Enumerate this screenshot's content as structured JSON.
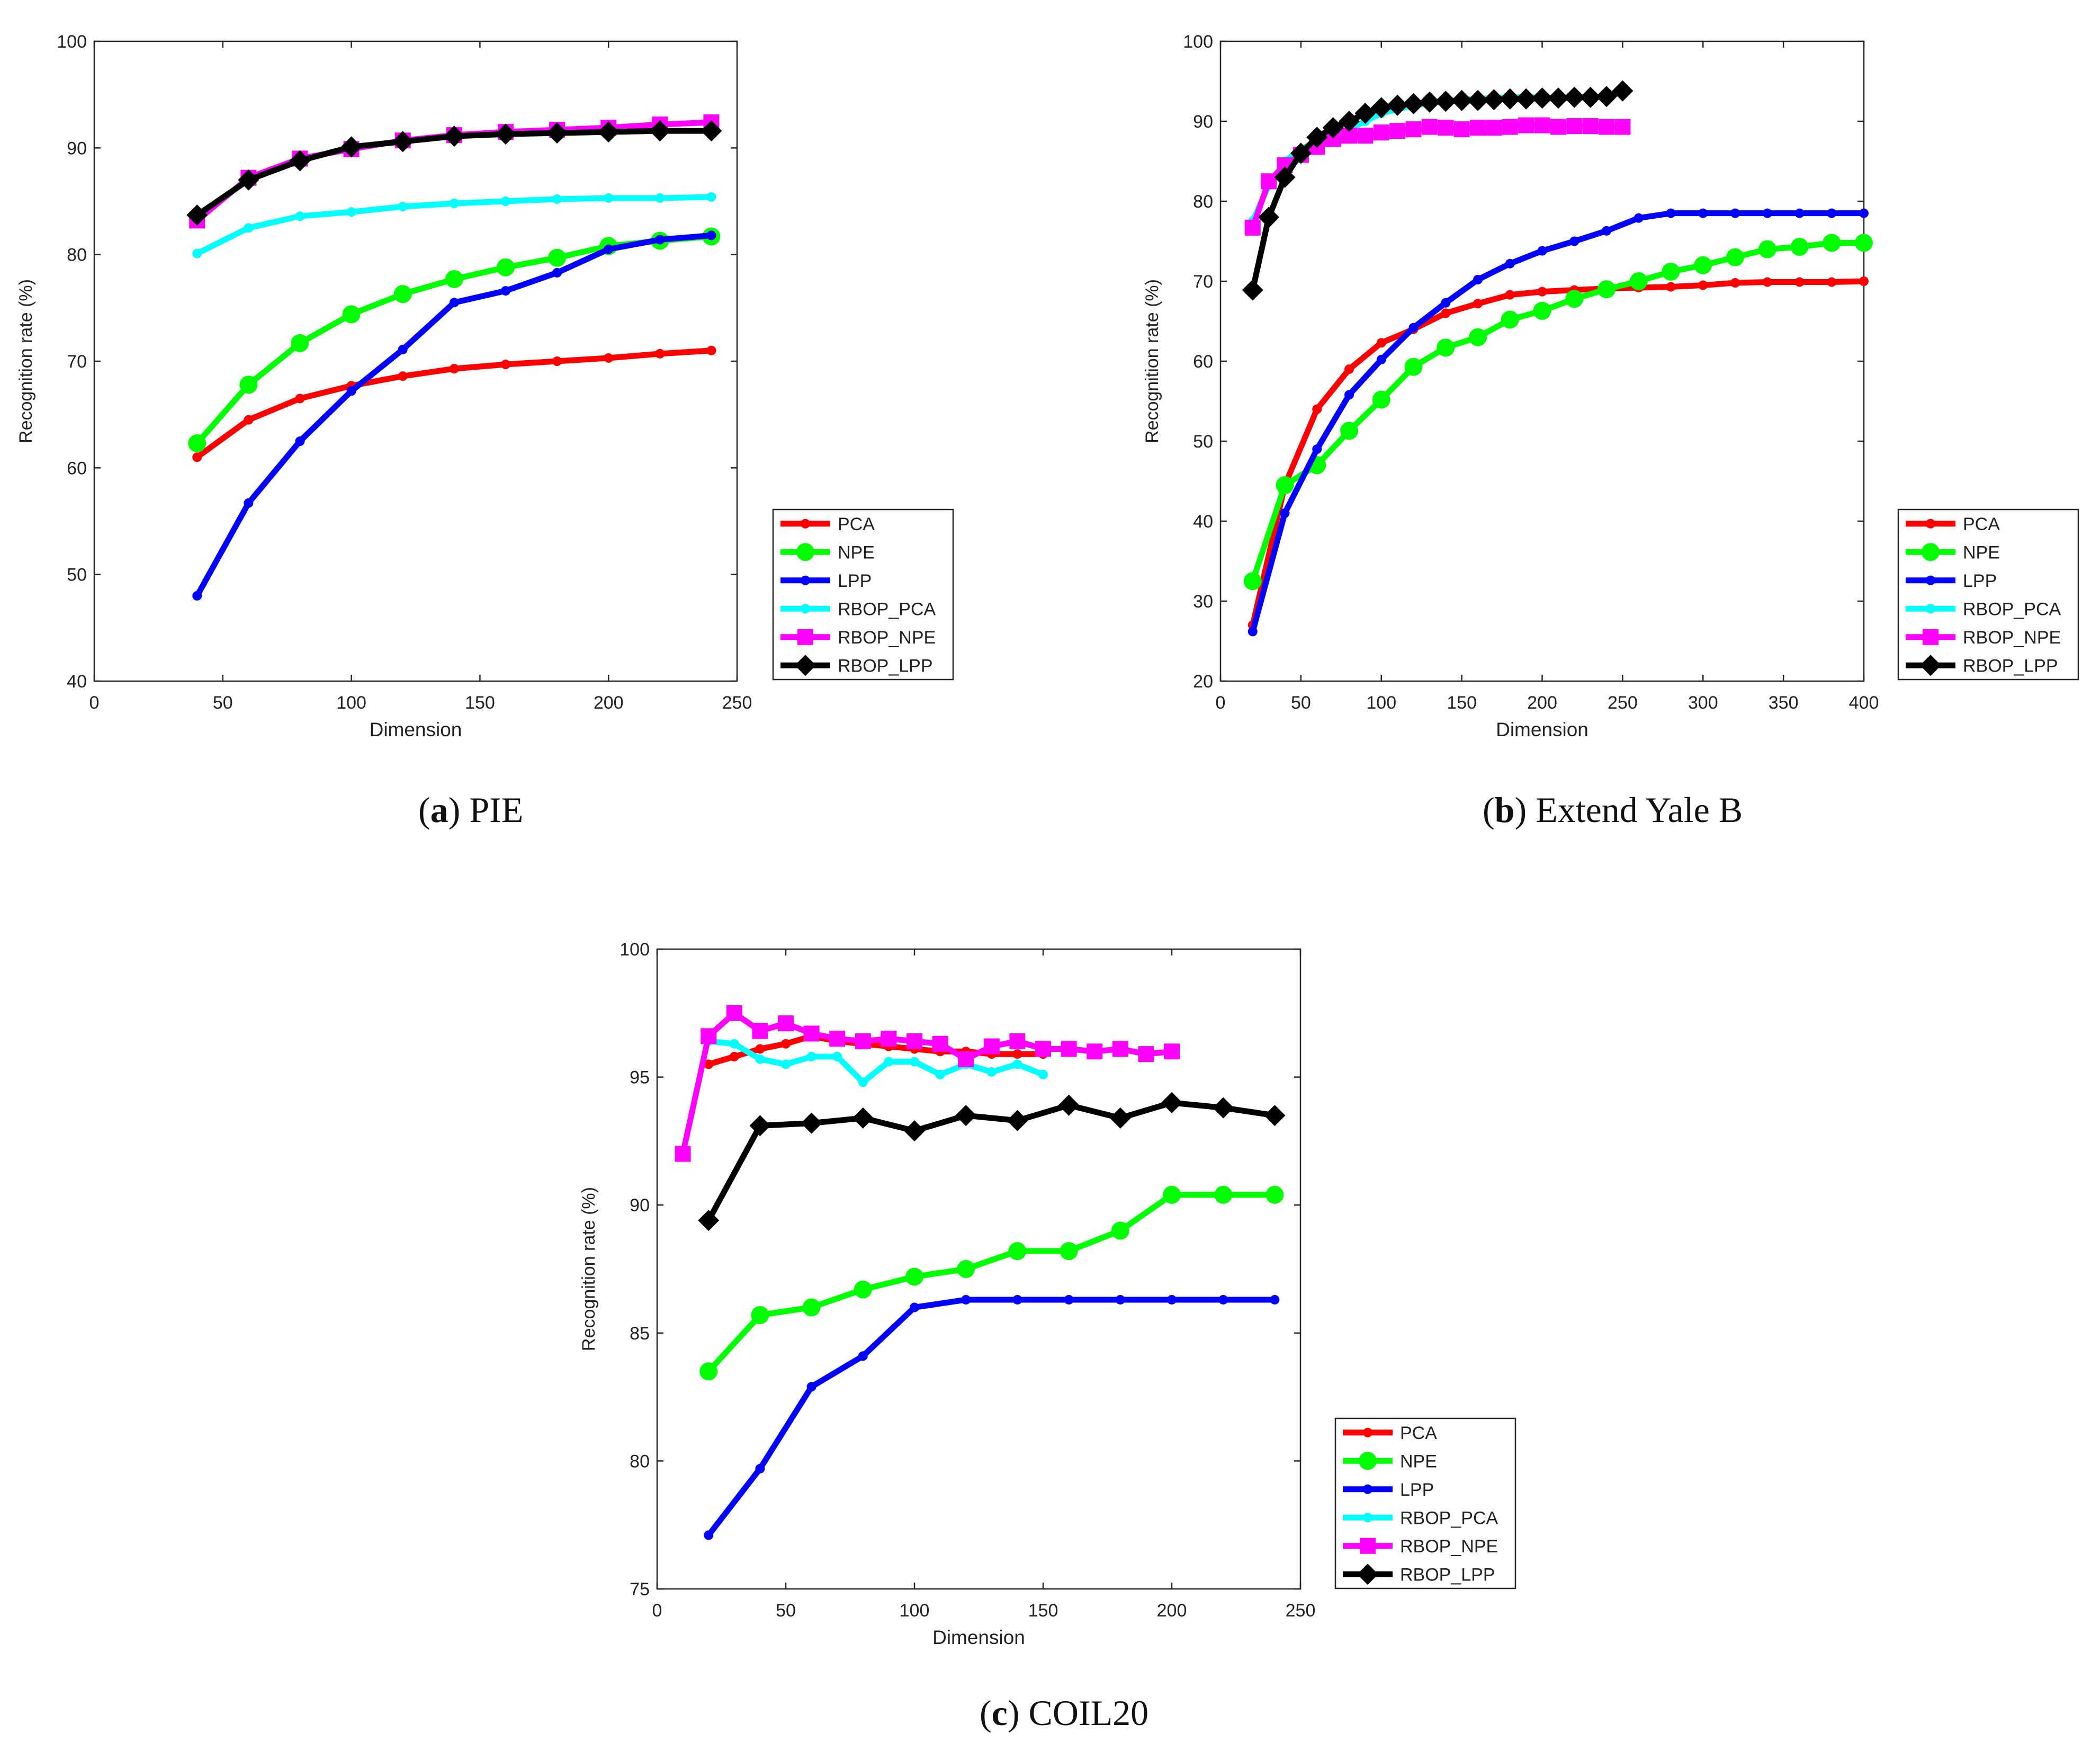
{
  "figure": {
    "captions": [
      {
        "letter": "a",
        "text": "PIE"
      },
      {
        "letter": "b",
        "text": "Extend Yale B"
      },
      {
        "letter": "c",
        "text": "COIL20"
      }
    ]
  },
  "colors": {
    "PCA": "#ff0000",
    "NPE": "#00ff00",
    "LPP": "#0000ff",
    "RBOP_PCA": "#00ffff",
    "RBOP_NPE": "#ff00ff",
    "RBOP_LPP": "#000000"
  },
  "chart_data": [
    {
      "type": "line",
      "title": "",
      "caption": "(a) PIE",
      "xlabel": "Dimension",
      "ylabel": "Recognition rate (%)",
      "xlim": [
        0,
        250
      ],
      "ylim": [
        40,
        100
      ],
      "xticks": [
        0,
        50,
        100,
        150,
        200,
        250
      ],
      "yticks": [
        40,
        50,
        60,
        70,
        80,
        90,
        100
      ],
      "legend_position": "right-middle",
      "series": [
        {
          "name": "PCA",
          "marker": "dot",
          "x": [
            40,
            60,
            80,
            100,
            120,
            140,
            160,
            180,
            200,
            220,
            240
          ],
          "values": [
            61.0,
            64.5,
            66.5,
            67.7,
            68.6,
            69.3,
            69.7,
            70.0,
            70.3,
            70.7,
            71.0
          ]
        },
        {
          "name": "NPE",
          "marker": "circle",
          "x": [
            40,
            60,
            80,
            100,
            120,
            140,
            160,
            180,
            200,
            220,
            240
          ],
          "values": [
            62.3,
            67.8,
            71.7,
            74.4,
            76.3,
            77.7,
            78.8,
            79.7,
            80.8,
            81.3,
            81.7
          ]
        },
        {
          "name": "LPP",
          "marker": "dot",
          "x": [
            40,
            60,
            80,
            100,
            120,
            140,
            160,
            180,
            200,
            220,
            240
          ],
          "values": [
            48.0,
            56.7,
            62.5,
            67.2,
            71.1,
            75.5,
            76.6,
            78.3,
            80.5,
            81.4,
            81.8
          ]
        },
        {
          "name": "RBOP_PCA",
          "marker": "dot",
          "x": [
            40,
            60,
            80,
            100,
            120,
            140,
            160,
            180,
            200,
            220,
            240
          ],
          "values": [
            80.1,
            82.5,
            83.6,
            84.0,
            84.5,
            84.8,
            85.0,
            85.2,
            85.3,
            85.3,
            85.4
          ]
        },
        {
          "name": "RBOP_NPE",
          "marker": "square",
          "x": [
            40,
            60,
            80,
            100,
            120,
            140,
            160,
            180,
            200,
            220,
            240
          ],
          "values": [
            83.2,
            87.2,
            89.0,
            89.9,
            90.7,
            91.2,
            91.5,
            91.7,
            91.9,
            92.2,
            92.4
          ]
        },
        {
          "name": "RBOP_LPP",
          "marker": "diamond",
          "x": [
            40,
            60,
            80,
            100,
            120,
            140,
            160,
            180,
            200,
            220,
            240
          ],
          "values": [
            83.7,
            87.0,
            88.8,
            90.1,
            90.6,
            91.1,
            91.3,
            91.4,
            91.5,
            91.6,
            91.6
          ]
        }
      ]
    },
    {
      "type": "line",
      "title": "",
      "caption": "(b) Extend Yale B",
      "xlabel": "Dimension",
      "ylabel": "Recognition rate (%)",
      "xlim": [
        0,
        400
      ],
      "ylim": [
        20,
        100
      ],
      "xticks": [
        0,
        50,
        100,
        150,
        200,
        250,
        300,
        350,
        400
      ],
      "yticks": [
        20,
        30,
        40,
        50,
        60,
        70,
        80,
        90,
        100
      ],
      "legend_position": "right-middle",
      "series": [
        {
          "name": "PCA",
          "marker": "dot",
          "x": [
            20,
            40,
            60,
            80,
            100,
            120,
            140,
            160,
            180,
            200,
            220,
            240,
            260,
            280,
            300,
            320,
            340,
            360,
            380,
            400
          ],
          "values": [
            27.0,
            44.5,
            54.0,
            59.0,
            62.3,
            64.0,
            66.0,
            67.2,
            68.3,
            68.7,
            68.9,
            69.1,
            69.2,
            69.3,
            69.5,
            69.8,
            69.9,
            69.9,
            69.9,
            70.0
          ]
        },
        {
          "name": "NPE",
          "marker": "circle",
          "x": [
            20,
            40,
            60,
            80,
            100,
            120,
            140,
            160,
            180,
            200,
            220,
            240,
            260,
            280,
            300,
            320,
            340,
            360,
            380,
            400
          ],
          "values": [
            32.5,
            44.5,
            47.0,
            51.3,
            55.2,
            59.3,
            61.7,
            63.0,
            65.2,
            66.3,
            67.8,
            69.0,
            70.0,
            71.2,
            72.0,
            73.0,
            74.0,
            74.3,
            74.8,
            74.8
          ]
        },
        {
          "name": "LPP",
          "marker": "dot",
          "x": [
            20,
            40,
            60,
            80,
            100,
            120,
            140,
            160,
            180,
            200,
            220,
            240,
            260,
            280,
            300,
            320,
            340,
            360,
            380,
            400
          ],
          "values": [
            26.2,
            41.0,
            49.0,
            55.8,
            60.2,
            64.2,
            67.3,
            70.2,
            72.2,
            73.8,
            75.0,
            76.3,
            77.9,
            78.5,
            78.5,
            78.5,
            78.5,
            78.5,
            78.5,
            78.5
          ]
        },
        {
          "name": "RBOP_PCA",
          "marker": "dot",
          "x": [
            20,
            30,
            40,
            50,
            60,
            70,
            80,
            90,
            100,
            110,
            120,
            130,
            140,
            150,
            160,
            170,
            180,
            190,
            200
          ],
          "values": [
            77.5,
            82.0,
            85.0,
            86.5,
            87.5,
            88.3,
            89.0,
            90.0,
            91.0,
            91.5,
            92.0,
            92.2,
            92.5,
            92.7,
            92.8,
            92.9,
            93.0,
            93.0,
            93.0
          ]
        },
        {
          "name": "RBOP_NPE",
          "marker": "square",
          "x": [
            20,
            30,
            40,
            50,
            60,
            70,
            80,
            90,
            100,
            110,
            120,
            130,
            140,
            150,
            160,
            170,
            180,
            190,
            200,
            210,
            220,
            230,
            240,
            250
          ],
          "values": [
            76.7,
            82.5,
            84.5,
            85.8,
            86.8,
            87.8,
            88.2,
            88.2,
            88.6,
            88.8,
            89.0,
            89.3,
            89.2,
            89.0,
            89.2,
            89.2,
            89.3,
            89.5,
            89.5,
            89.3,
            89.4,
            89.4,
            89.3,
            89.3
          ]
        },
        {
          "name": "RBOP_LPP",
          "marker": "diamond",
          "x": [
            20,
            30,
            40,
            50,
            60,
            70,
            80,
            90,
            100,
            110,
            120,
            130,
            140,
            150,
            160,
            170,
            180,
            190,
            200,
            210,
            220,
            230,
            240,
            250
          ],
          "values": [
            68.9,
            78.0,
            83.0,
            86.0,
            88.0,
            89.2,
            90.0,
            91.0,
            91.7,
            92.0,
            92.2,
            92.4,
            92.5,
            92.6,
            92.6,
            92.7,
            92.8,
            92.8,
            92.9,
            92.9,
            93.0,
            93.0,
            93.1,
            93.8
          ]
        }
      ]
    },
    {
      "type": "line",
      "title": "",
      "caption": "(c) COIL20",
      "xlabel": "Dimension",
      "ylabel": "Recognition rate (%)",
      "xlim": [
        0,
        250
      ],
      "ylim": [
        75,
        100
      ],
      "xticks": [
        0,
        50,
        100,
        150,
        200,
        250
      ],
      "yticks": [
        75,
        80,
        85,
        90,
        95,
        100
      ],
      "legend_position": "right-bottom",
      "series": [
        {
          "name": "PCA",
          "marker": "dot",
          "x": [
            20,
            30,
            40,
            50,
            60,
            70,
            80,
            90,
            100,
            110,
            120,
            130,
            140,
            150
          ],
          "values": [
            95.5,
            95.8,
            96.1,
            96.3,
            96.6,
            96.4,
            96.3,
            96.2,
            96.1,
            96.0,
            96.0,
            95.9,
            95.9,
            95.9
          ]
        },
        {
          "name": "NPE",
          "marker": "circle",
          "x": [
            20,
            40,
            60,
            80,
            100,
            120,
            140,
            160,
            180,
            200,
            220,
            240
          ],
          "values": [
            83.5,
            85.7,
            86.0,
            86.7,
            87.2,
            87.5,
            88.2,
            88.2,
            89.0,
            90.4,
            90.4,
            90.4
          ]
        },
        {
          "name": "LPP",
          "marker": "dot",
          "x": [
            20,
            40,
            60,
            80,
            100,
            120,
            140,
            160,
            180,
            200,
            220,
            240
          ],
          "values": [
            77.1,
            79.7,
            82.9,
            84.1,
            86.0,
            86.3,
            86.3,
            86.3,
            86.3,
            86.3,
            86.3,
            86.3
          ]
        },
        {
          "name": "RBOP_PCA",
          "marker": "dot",
          "x": [
            20,
            30,
            40,
            50,
            60,
            70,
            80,
            90,
            100,
            110,
            120,
            130,
            140,
            150
          ],
          "values": [
            96.4,
            96.3,
            95.7,
            95.5,
            95.8,
            95.8,
            94.8,
            95.6,
            95.6,
            95.1,
            95.5,
            95.2,
            95.5,
            95.1
          ]
        },
        {
          "name": "RBOP_NPE",
          "marker": "square",
          "x": [
            10,
            20,
            30,
            40,
            50,
            60,
            70,
            80,
            90,
            100,
            110,
            120,
            130,
            140,
            150,
            160,
            170,
            180,
            190,
            200
          ],
          "values": [
            92.0,
            96.6,
            97.5,
            96.8,
            97.1,
            96.7,
            96.5,
            96.4,
            96.5,
            96.4,
            96.3,
            95.7,
            96.2,
            96.4,
            96.1,
            96.1,
            96.0,
            96.1,
            95.9,
            96.0
          ]
        },
        {
          "name": "RBOP_LPP",
          "marker": "diamond",
          "x": [
            20,
            40,
            60,
            80,
            100,
            120,
            140,
            160,
            180,
            200,
            220,
            240
          ],
          "values": [
            89.4,
            93.1,
            93.2,
            93.4,
            92.9,
            93.5,
            93.3,
            93.9,
            93.4,
            94.0,
            93.8,
            93.5
          ]
        }
      ]
    }
  ]
}
